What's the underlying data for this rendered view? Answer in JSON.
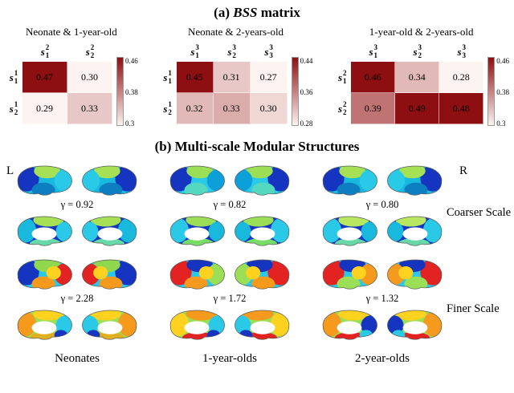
{
  "figure": {
    "panel_a_title_prefix": "(a) ",
    "panel_a_title_bss": "BSS",
    "panel_a_title_suffix": " matrix",
    "panel_b_title": "(b) Multi-scale Modular Structures"
  },
  "colormap": {
    "low": "#fdf3f0",
    "high": "#8e0f11"
  },
  "chart_data": [
    {
      "type": "heatmap",
      "title": "Neonate & 1-year-old",
      "col_labels": [
        {
          "base": "s",
          "sup": "2",
          "sub": "1"
        },
        {
          "base": "s",
          "sup": "2",
          "sub": "2"
        }
      ],
      "row_labels": [
        {
          "base": "s",
          "sup": "1",
          "sub": "1"
        },
        {
          "base": "s",
          "sup": "1",
          "sub": "2"
        }
      ],
      "values": [
        [
          0.47,
          0.3
        ],
        [
          0.29,
          0.33
        ]
      ],
      "value_labels": [
        [
          "0.47",
          "0.30"
        ],
        [
          "0.29",
          "0.33"
        ]
      ],
      "vmin": 0.3,
      "vmax": 0.46,
      "colorbar_ticks": [
        "0.46",
        "0.38",
        "0.3"
      ]
    },
    {
      "type": "heatmap",
      "title": "Neonate & 2-years-old",
      "col_labels": [
        {
          "base": "s",
          "sup": "3",
          "sub": "1"
        },
        {
          "base": "s",
          "sup": "3",
          "sub": "2"
        },
        {
          "base": "s",
          "sup": "3",
          "sub": "3"
        }
      ],
      "row_labels": [
        {
          "base": "s",
          "sup": "1",
          "sub": "1"
        },
        {
          "base": "s",
          "sup": "1",
          "sub": "2"
        }
      ],
      "values": [
        [
          0.45,
          0.31,
          0.27
        ],
        [
          0.32,
          0.33,
          0.3
        ]
      ],
      "value_labels": [
        [
          "0.45",
          "0.31",
          "0.27"
        ],
        [
          "0.32",
          "0.33",
          "0.30"
        ]
      ],
      "vmin": 0.28,
      "vmax": 0.44,
      "colorbar_ticks": [
        "0.44",
        "0.36",
        "0.28"
      ]
    },
    {
      "type": "heatmap",
      "title": "1-year-old & 2-years-old",
      "col_labels": [
        {
          "base": "s",
          "sup": "3",
          "sub": "1"
        },
        {
          "base": "s",
          "sup": "3",
          "sub": "2"
        },
        {
          "base": "s",
          "sup": "3",
          "sub": "3"
        }
      ],
      "row_labels": [
        {
          "base": "s",
          "sup": "2",
          "sub": "1"
        },
        {
          "base": "s",
          "sup": "2",
          "sub": "2"
        }
      ],
      "values": [
        [
          0.46,
          0.34,
          0.28
        ],
        [
          0.39,
          0.49,
          0.48
        ]
      ],
      "value_labels": [
        [
          "0.46",
          "0.34",
          "0.28"
        ],
        [
          "0.39",
          "0.49",
          "0.48"
        ]
      ],
      "vmin": 0.3,
      "vmax": 0.46,
      "colorbar_ticks": [
        "0.46",
        "0.38",
        "0.3"
      ]
    }
  ],
  "brains": {
    "hemisphere_labels": {
      "left": "L",
      "right": "R"
    },
    "scale_labels": [
      "Coarser Scale",
      "Finer Scale"
    ],
    "group_labels": [
      "Neonates",
      "1-year-olds",
      "2-year-olds"
    ],
    "rows": [
      {
        "scale": "coarser",
        "cells": [
          {
            "gamma": "γ = 0.92",
            "lateral_palette": [
              "#19b9de",
              "#1535c0",
              "#a5e055",
              "#2bc9e8",
              "#0d7fc0"
            ],
            "medial_palette": [
              "#1535c0",
              "#19b9de",
              "#a5e055",
              "#2bc9e8",
              "#67d9a8"
            ]
          },
          {
            "gamma": "γ = 0.82",
            "lateral_palette": [
              "#2bc9e8",
              "#1535c0",
              "#9adf55",
              "#0d9fd8",
              "#55d8c0"
            ],
            "medial_palette": [
              "#1535c0",
              "#2bc9e8",
              "#9adf55",
              "#19b9de",
              "#77dd66"
            ]
          },
          {
            "gamma": "γ = 0.80",
            "lateral_palette": [
              "#19b9de",
              "#1535c0",
              "#a5e055",
              "#2bc9e8",
              "#0d7fc0"
            ],
            "medial_palette": [
              "#1535c0",
              "#2bc9e8",
              "#b8e860",
              "#19b9de",
              "#67d9a8"
            ]
          }
        ]
      },
      {
        "scale": "finer",
        "cells": [
          {
            "gamma": "γ = 2.28",
            "lateral_palette": [
              "#2bc9e8",
              "#1535c0",
              "#8fd84e",
              "#e32222",
              "#f59a1d",
              "#ffd21f"
            ],
            "medial_palette": [
              "#9adf55",
              "#f59a1d",
              "#ffd21f",
              "#2bc9e8",
              "#e0b020",
              "#1535c0"
            ]
          },
          {
            "gamma": "γ = 1.72",
            "lateral_palette": [
              "#2bc9e8",
              "#e32222",
              "#1535c0",
              "#9adf55",
              "#f59a1d",
              "#ffd21f"
            ],
            "medial_palette": [
              "#9adf55",
              "#ffd21f",
              "#f59a1d",
              "#2bc9e8",
              "#e32222",
              "#1535c0"
            ]
          },
          {
            "gamma": "γ = 1.32",
            "lateral_palette": [
              "#2bc9e8",
              "#e32222",
              "#1535c0",
              "#f59a1d",
              "#9adf55",
              "#ffd21f"
            ],
            "medial_palette": [
              "#9adf55",
              "#f59a1d",
              "#ffd21f",
              "#1535c0",
              "#e32222",
              "#2bc9e8"
            ]
          }
        ]
      }
    ]
  }
}
